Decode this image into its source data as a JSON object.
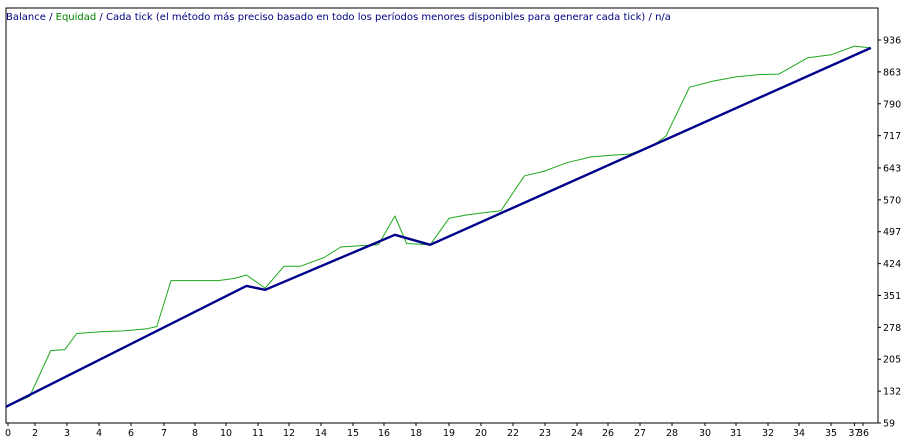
{
  "header": {
    "balance_label": "Balance",
    "sep1": " / ",
    "equity_label": "Equidad",
    "sep2": " / ",
    "model_label": "Cada tick (el método más preciso basado en todo los períodos menores disponibles para generar cada tick)",
    "sep3": "  / ",
    "extra_label": "n/a"
  },
  "colors": {
    "balance": "#00008b",
    "equity": "#1ea81e",
    "axis": "#000000",
    "text_dark": "#000080",
    "text_green": "#008000"
  },
  "chart_data": {
    "type": "line",
    "title": "",
    "xlabel": "",
    "ylabel": "",
    "xlim": [
      1,
      38
    ],
    "ylim": [
      59,
      960
    ],
    "x_ticks": [
      0,
      2,
      3,
      4,
      6,
      7,
      8,
      10,
      11,
      12,
      14,
      15,
      16,
      18,
      19,
      20,
      22,
      23,
      24,
      26,
      27,
      28,
      30,
      31,
      32,
      34,
      35,
      36,
      37
    ],
    "y_ticks": [
      59,
      132,
      205,
      278,
      351,
      424,
      497,
      570,
      643,
      717,
      790,
      863,
      936
    ],
    "grid": false,
    "legend": "none",
    "series": [
      {
        "name": "Balance",
        "x": [
          1,
          11.2,
          12.0,
          17.5,
          19.0,
          37.7
        ],
        "values": [
          96,
          373,
          364,
          490,
          467,
          918
        ]
      },
      {
        "name": "Equidad",
        "x": [
          1,
          2.0,
          2.9,
          3.5,
          4.0,
          5.0,
          6.0,
          7.0,
          7.4,
          8.0,
          9.0,
          10.0,
          10.7,
          11.2,
          12.0,
          12.8,
          13.5,
          14.5,
          15.2,
          16.0,
          16.8,
          17.5,
          18.0,
          19.0,
          19.8,
          20.5,
          21.2,
          22.0,
          23.0,
          23.8,
          24.8,
          25.8,
          26.7,
          27.5,
          28.5,
          29.0,
          30.0,
          31.0,
          32.0,
          33.0,
          33.8,
          35.0,
          36.0,
          37.0,
          37.7
        ],
        "values": [
          96,
          120,
          225,
          227,
          264,
          268,
          270,
          275,
          280,
          385,
          385,
          385,
          390,
          398,
          368,
          418,
          418,
          438,
          462,
          465,
          467,
          533,
          470,
          467,
          528,
          535,
          540,
          545,
          625,
          635,
          655,
          668,
          672,
          675,
          696,
          716,
          828,
          842,
          852,
          857,
          858,
          895,
          902,
          922,
          918
        ]
      }
    ]
  }
}
